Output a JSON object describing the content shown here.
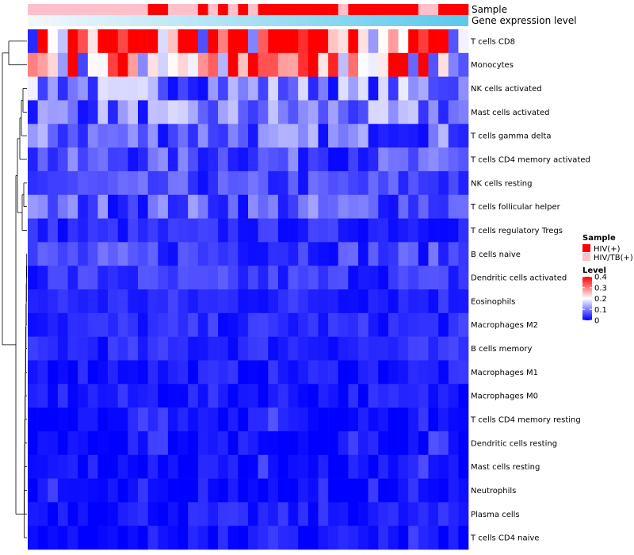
{
  "chart_data": {
    "type": "heatmap",
    "title": "",
    "rows": [
      "T cells CD8",
      "Monocytes",
      "NK cells activated",
      "Mast cells activated",
      "T cells gamma delta",
      "T cells CD4 memory activated",
      "NK cells resting",
      "T cells follicular helper",
      "T cells regulatory  Tregs",
      "B cells naive",
      "Dendritic cells activated",
      "Eosinophils",
      "Macrophages M2",
      "B cells memory",
      "Macrophages M1",
      "Macrophages M0",
      "T cells CD4 memory resting",
      "Dendritic cells resting",
      "Mast cells resting",
      "Neutrophils",
      "Plasma cells",
      "T cells CD4 naive"
    ],
    "n_columns": 44,
    "row_mean_levels": [
      0.32,
      0.27,
      0.1,
      0.09,
      0.08,
      0.06,
      0.05,
      0.07,
      0.03,
      0.05,
      0.04,
      0.03,
      0.03,
      0.03,
      0.02,
      0.02,
      0.01,
      0.01,
      0.01,
      0.0,
      0.02,
      0.01
    ],
    "sample_track": {
      "label": "Sample",
      "pattern": [
        "HIV/TB(+)",
        "HIV/TB(+)",
        "HIV/TB(+)",
        "HIV/TB(+)",
        "HIV/TB(+)",
        "HIV/TB(+)",
        "HIV/TB(+)",
        "HIV/TB(+)",
        "HIV/TB(+)",
        "HIV/TB(+)",
        "HIV/TB(+)",
        "HIV/TB(+)",
        "HIV(+)",
        "HIV(+)",
        "HIV/TB(+)",
        "HIV/TB(+)",
        "HIV/TB(+)",
        "HIV(+)",
        "HIV/TB(+)",
        "HIV(+)",
        "HIV/TB(+)",
        "HIV(+)",
        "HIV/TB(+)",
        "HIV(+)",
        "HIV(+)",
        "HIV(+)",
        "HIV(+)",
        "HIV(+)",
        "HIV(+)",
        "HIV(+)",
        "HIV(+)",
        "HIV/TB(+)",
        "HIV(+)",
        "HIV(+)",
        "HIV(+)",
        "HIV(+)",
        "HIV(+)",
        "HIV(+)",
        "HIV(+)",
        "HIV/TB(+)",
        "HIV/TB(+)",
        "HIV(+)",
        "HIV(+)",
        "HIV(+)"
      ]
    },
    "expression_track": {
      "label": "Gene expression level",
      "start": "#f4f8fc",
      "end": "#5bc8ec"
    },
    "legend": {
      "sample": {
        "title": "Sample",
        "items": [
          {
            "label": "HIV(+)",
            "color": "#ff0000"
          },
          {
            "label": "HIV/TB(+)",
            "color": "#ffc0cb"
          }
        ]
      },
      "level": {
        "title": "Level",
        "ticks": [
          "0.4",
          "0.3",
          "0.2",
          "0.1",
          "0"
        ],
        "tick_values": [
          0.4,
          0.3,
          0.2,
          0.1,
          0
        ],
        "min": 0,
        "max": 0.4
      }
    },
    "colorscale": {
      "low": "#0000ff",
      "mid": "#ffffff",
      "high": "#ff0000",
      "mid_value": 0.2,
      "max_value": 0.4
    },
    "dendrogram": {
      "side": "left"
    }
  }
}
